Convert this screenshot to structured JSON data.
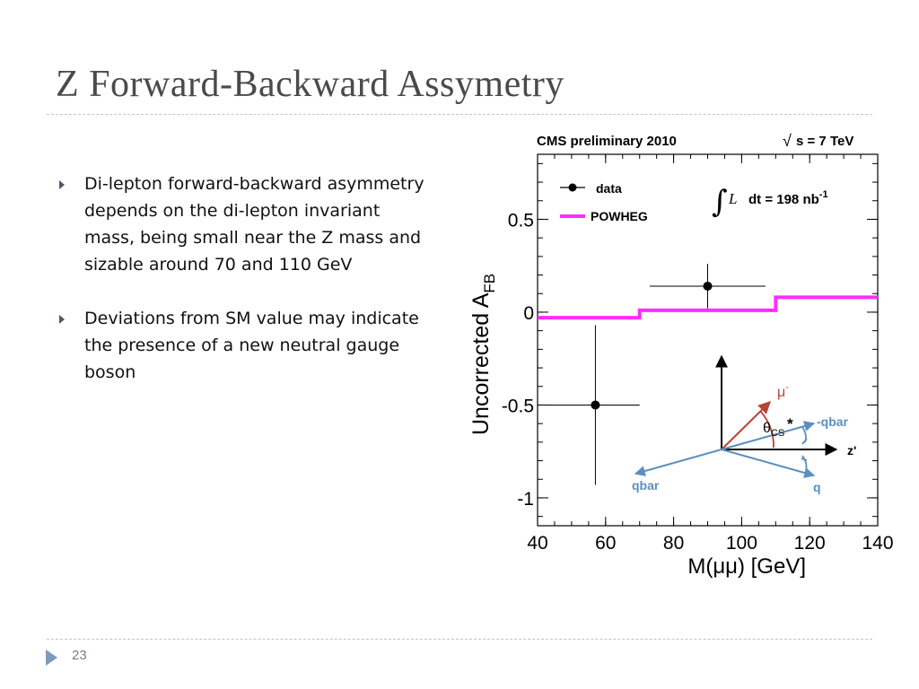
{
  "slide": {
    "title": "Z Forward-Backward Assymetry",
    "bullets": [
      "Di-lepton forward-backward asymmetry depends on the di-lepton invariant mass, being small near the Z mass and sizable around 70 and 110 GeV",
      "Deviations from SM value may indicate the presence of a new neutral gauge boson"
    ],
    "page_number": "23",
    "colors": {
      "title": "#4a4a4a",
      "rule": "#b9c7d4",
      "footer_arrow": "#7d9abb"
    }
  },
  "chart_data": {
    "type": "scatter",
    "header_left": "CMS preliminary 2010",
    "header_right": "s = 7 TeV",
    "header_right_prefix": "√",
    "xlabel": "M(μμ)  [GeV]",
    "ylabel": "Uncorrected A",
    "ylabel_sub": "FB",
    "xlim": [
      40,
      140
    ],
    "ylim": [
      -1.15,
      0.85
    ],
    "x_ticks": [
      "40",
      "60",
      "80",
      "100",
      "120",
      "140"
    ],
    "y_ticks": [
      "0.5",
      "0",
      "-0.5",
      "-1"
    ],
    "luminosity": {
      "prefix": "∫",
      "symbol": "L",
      "text": "dt = 198 nb",
      "sup": "-1"
    },
    "legend": {
      "position": "top-left",
      "entries": [
        "data",
        "POWHEG"
      ]
    },
    "data": {
      "name": "data",
      "color": "#000000",
      "points": [
        {
          "x": 57,
          "y": -0.5,
          "xerr": [
            17,
            13
          ],
          "yerr": [
            0.43,
            0.43
          ]
        },
        {
          "x": 90,
          "y": 0.14,
          "xerr": [
            17,
            17
          ],
          "yerr": [
            0.12,
            0.12
          ]
        }
      ]
    },
    "powheg": {
      "name": "POWHEG",
      "color": "#ff2cff",
      "bins": [
        {
          "x0": 40,
          "x1": 70,
          "y": -0.03
        },
        {
          "x0": 70,
          "x1": 110,
          "y": 0.01
        },
        {
          "x0": 110,
          "x1": 140,
          "y": 0.08
        }
      ]
    },
    "inset": {
      "labels": {
        "mu": "μ",
        "mu_sup": "-",
        "theta": "θ",
        "theta_sub": "CS",
        "star": "*",
        "qbar_minus": "-qbar",
        "zprime": "z'",
        "qbar": "qbar",
        "q": "q"
      },
      "colors": {
        "axis": "#000000",
        "mu": "#b84434",
        "quark": "#5b8fc0"
      }
    }
  }
}
